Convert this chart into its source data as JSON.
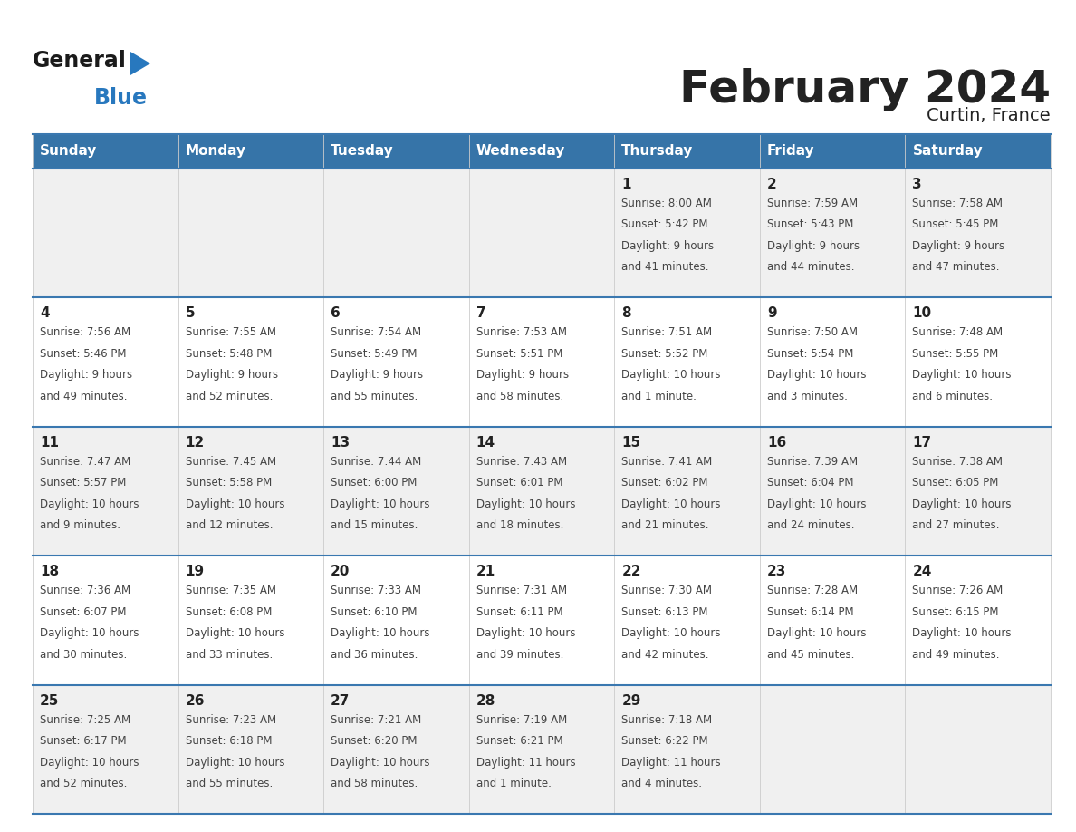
{
  "title": "February 2024",
  "subtitle": "Curtin, France",
  "header_bg": "#3674a8",
  "header_text_color": "#ffffff",
  "cell_bg": "#f0f0f0",
  "cell_bg_white": "#ffffff",
  "row_line_color": "#3a78b0",
  "grid_line_color": "#cccccc",
  "text_color": "#444444",
  "day_number_color": "#222222",
  "days_of_week": [
    "Sunday",
    "Monday",
    "Tuesday",
    "Wednesday",
    "Thursday",
    "Friday",
    "Saturday"
  ],
  "logo_general_color": "#1a1a1a",
  "logo_blue_color": "#2878be",
  "calendar": [
    [
      {
        "day": "",
        "sunrise": "",
        "sunset": "",
        "daylight": ""
      },
      {
        "day": "",
        "sunrise": "",
        "sunset": "",
        "daylight": ""
      },
      {
        "day": "",
        "sunrise": "",
        "sunset": "",
        "daylight": ""
      },
      {
        "day": "",
        "sunrise": "",
        "sunset": "",
        "daylight": ""
      },
      {
        "day": "1",
        "sunrise": "8:00 AM",
        "sunset": "5:42 PM",
        "daylight": "9 hours and 41 minutes."
      },
      {
        "day": "2",
        "sunrise": "7:59 AM",
        "sunset": "5:43 PM",
        "daylight": "9 hours and 44 minutes."
      },
      {
        "day": "3",
        "sunrise": "7:58 AM",
        "sunset": "5:45 PM",
        "daylight": "9 hours and 47 minutes."
      }
    ],
    [
      {
        "day": "4",
        "sunrise": "7:56 AM",
        "sunset": "5:46 PM",
        "daylight": "9 hours and 49 minutes."
      },
      {
        "day": "5",
        "sunrise": "7:55 AM",
        "sunset": "5:48 PM",
        "daylight": "9 hours and 52 minutes."
      },
      {
        "day": "6",
        "sunrise": "7:54 AM",
        "sunset": "5:49 PM",
        "daylight": "9 hours and 55 minutes."
      },
      {
        "day": "7",
        "sunrise": "7:53 AM",
        "sunset": "5:51 PM",
        "daylight": "9 hours and 58 minutes."
      },
      {
        "day": "8",
        "sunrise": "7:51 AM",
        "sunset": "5:52 PM",
        "daylight": "10 hours and 1 minute."
      },
      {
        "day": "9",
        "sunrise": "7:50 AM",
        "sunset": "5:54 PM",
        "daylight": "10 hours and 3 minutes."
      },
      {
        "day": "10",
        "sunrise": "7:48 AM",
        "sunset": "5:55 PM",
        "daylight": "10 hours and 6 minutes."
      }
    ],
    [
      {
        "day": "11",
        "sunrise": "7:47 AM",
        "sunset": "5:57 PM",
        "daylight": "10 hours and 9 minutes."
      },
      {
        "day": "12",
        "sunrise": "7:45 AM",
        "sunset": "5:58 PM",
        "daylight": "10 hours and 12 minutes."
      },
      {
        "day": "13",
        "sunrise": "7:44 AM",
        "sunset": "6:00 PM",
        "daylight": "10 hours and 15 minutes."
      },
      {
        "day": "14",
        "sunrise": "7:43 AM",
        "sunset": "6:01 PM",
        "daylight": "10 hours and 18 minutes."
      },
      {
        "day": "15",
        "sunrise": "7:41 AM",
        "sunset": "6:02 PM",
        "daylight": "10 hours and 21 minutes."
      },
      {
        "day": "16",
        "sunrise": "7:39 AM",
        "sunset": "6:04 PM",
        "daylight": "10 hours and 24 minutes."
      },
      {
        "day": "17",
        "sunrise": "7:38 AM",
        "sunset": "6:05 PM",
        "daylight": "10 hours and 27 minutes."
      }
    ],
    [
      {
        "day": "18",
        "sunrise": "7:36 AM",
        "sunset": "6:07 PM",
        "daylight": "10 hours and 30 minutes."
      },
      {
        "day": "19",
        "sunrise": "7:35 AM",
        "sunset": "6:08 PM",
        "daylight": "10 hours and 33 minutes."
      },
      {
        "day": "20",
        "sunrise": "7:33 AM",
        "sunset": "6:10 PM",
        "daylight": "10 hours and 36 minutes."
      },
      {
        "day": "21",
        "sunrise": "7:31 AM",
        "sunset": "6:11 PM",
        "daylight": "10 hours and 39 minutes."
      },
      {
        "day": "22",
        "sunrise": "7:30 AM",
        "sunset": "6:13 PM",
        "daylight": "10 hours and 42 minutes."
      },
      {
        "day": "23",
        "sunrise": "7:28 AM",
        "sunset": "6:14 PM",
        "daylight": "10 hours and 45 minutes."
      },
      {
        "day": "24",
        "sunrise": "7:26 AM",
        "sunset": "6:15 PM",
        "daylight": "10 hours and 49 minutes."
      }
    ],
    [
      {
        "day": "25",
        "sunrise": "7:25 AM",
        "sunset": "6:17 PM",
        "daylight": "10 hours and 52 minutes."
      },
      {
        "day": "26",
        "sunrise": "7:23 AM",
        "sunset": "6:18 PM",
        "daylight": "10 hours and 55 minutes."
      },
      {
        "day": "27",
        "sunrise": "7:21 AM",
        "sunset": "6:20 PM",
        "daylight": "10 hours and 58 minutes."
      },
      {
        "day": "28",
        "sunrise": "7:19 AM",
        "sunset": "6:21 PM",
        "daylight": "11 hours and 1 minute."
      },
      {
        "day": "29",
        "sunrise": "7:18 AM",
        "sunset": "6:22 PM",
        "daylight": "11 hours and 4 minutes."
      },
      {
        "day": "",
        "sunrise": "",
        "sunset": "",
        "daylight": ""
      },
      {
        "day": "",
        "sunrise": "",
        "sunset": "",
        "daylight": ""
      }
    ]
  ]
}
